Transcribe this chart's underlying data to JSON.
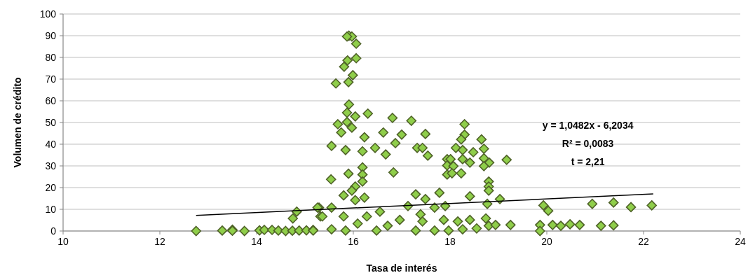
{
  "chart_data": {
    "type": "scatter",
    "xlabel": "Tasa de interés",
    "ylabel": "Volumen de crédito",
    "xlim": [
      10,
      24
    ],
    "xticks": [
      10,
      12,
      14,
      16,
      18,
      20,
      22,
      24
    ],
    "ylim": [
      0,
      100
    ],
    "yticks": [
      0,
      10,
      20,
      30,
      40,
      50,
      60,
      70,
      80,
      90,
      100
    ],
    "grid": "y",
    "marker": "diamond",
    "annotations": [
      "y = 1,0482x - 6,2034",
      "R² = 0,0083",
      "t = 2,21"
    ],
    "series": [
      {
        "color": "#8fce4a",
        "x": [
          12.75,
          13.29,
          13.5,
          13.5,
          13.75,
          14.06,
          14.16,
          14.32,
          14.45,
          14.6,
          14.74,
          14.75,
          14.83,
          14.88,
          15.03,
          15.17,
          15.29,
          15.32,
          15.91,
          15.97,
          16.06,
          15.87,
          16.06,
          15.88,
          15.81,
          15.99,
          15.9,
          15.64,
          15.91,
          15.87,
          16.04,
          16.3,
          15.68,
          15.87,
          16.81,
          17.2,
          15.97,
          15.75,
          16.23,
          16.62,
          17.0,
          17.49,
          15.55,
          15.84,
          16.45,
          16.87,
          16.67,
          17.32,
          17.43,
          17.54,
          16.19,
          16.19,
          16.19,
          16.19,
          16.83,
          15.9,
          15.54,
          16.04,
          15.97,
          15.8,
          16.04,
          17.78,
          17.29,
          17.49,
          16.23,
          15.26,
          15.55,
          16.55,
          17.13,
          17.68,
          15.36,
          15.8,
          16.28,
          17.39,
          15.17,
          15.55,
          15.84,
          16.09,
          16.48,
          16.71,
          16.96,
          17.29,
          17.43,
          17.68,
          17.87,
          17.94,
          17.94,
          17.94,
          18.3,
          18.3,
          18.23,
          18.65,
          18.12,
          18.26,
          18.48,
          18.7,
          18.01,
          18.26,
          18.41,
          18.7,
          18.81,
          19.17,
          18.07,
          18.04,
          18.23,
          18.7,
          18.8,
          18.8,
          18.8,
          18.41,
          19.03,
          18.77,
          17.9,
          19.93,
          20.03,
          20.94,
          21.38,
          21.74,
          22.17,
          19.25,
          19.86,
          19.86,
          20.12,
          20.29,
          20.48,
          20.68,
          21.12,
          21.38,
          17.97,
          18.26,
          18.55,
          18.8,
          18.94,
          18.16,
          18.41,
          18.74
        ],
        "values": [
          0,
          0.2,
          0.6,
          0.1,
          0,
          0.3,
          0.5,
          0.5,
          0.2,
          0,
          0.1,
          5.8,
          8.9,
          0.2,
          0.3,
          0.5,
          10.8,
          6.7,
          90.0,
          89.6,
          86.3,
          89.6,
          79.6,
          78.6,
          75.7,
          71.8,
          68.6,
          68.0,
          58.3,
          54.5,
          52.8,
          54.1,
          49.2,
          50.2,
          52.1,
          50.8,
          47.6,
          45.4,
          43.2,
          45.4,
          44.4,
          44.7,
          39.2,
          37.3,
          38.3,
          40.5,
          35.3,
          38.3,
          38.3,
          34.7,
          36.7,
          29.3,
          26.0,
          22.8,
          27.0,
          26.4,
          23.8,
          20.5,
          18.6,
          16.4,
          14.2,
          17.6,
          16.9,
          14.7,
          15.4,
          10.8,
          10.8,
          8.9,
          11.5,
          10.8,
          6.7,
          6.7,
          6.7,
          7.7,
          0.2,
          0.8,
          0.2,
          3.4,
          0.2,
          2.4,
          5.1,
          0.2,
          4.4,
          0.2,
          5.1,
          33.1,
          30.2,
          26.0,
          49.2,
          44.4,
          42.2,
          42.2,
          38.3,
          37.3,
          36.3,
          37.9,
          33.1,
          33.1,
          31.5,
          33.5,
          31.5,
          32.8,
          29.9,
          26.6,
          26.6,
          29.9,
          22.8,
          20.5,
          18.6,
          16.0,
          14.7,
          12.5,
          11.5,
          11.8,
          9.3,
          12.5,
          13.1,
          11.0,
          11.8,
          2.8,
          2.8,
          0,
          2.8,
          2.4,
          3.1,
          2.8,
          2.4,
          2.6,
          0.2,
          0.8,
          1.2,
          2.4,
          2.8,
          4.4,
          5.1,
          5.8
        ]
      },
      {
        "type": "line",
        "color": "#000000",
        "marker": "none",
        "x": [
          12.75,
          22.2
        ],
        "values": [
          7.2,
          17.1
        ]
      }
    ]
  }
}
